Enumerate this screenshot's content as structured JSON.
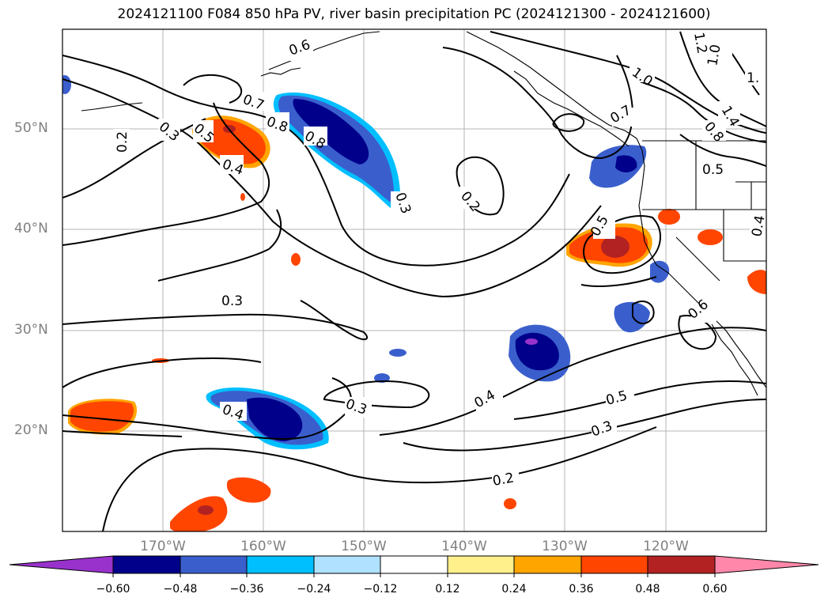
{
  "title": "2024121100 F084 850 hPa PV, river basin precipitation PC (2024121300 - 2024121600)",
  "lat_labels": [
    "50°N",
    "40°N",
    "30°N",
    "20°N"
  ],
  "lon_labels": [
    "170°W",
    "160°W",
    "150°W",
    "140°W",
    "130°W",
    "120°W"
  ],
  "contour_labels": [
    "0.2",
    "0.3",
    "0.5",
    "0.4",
    "0.7",
    "0.8",
    "0.6",
    "0.8",
    "0.3",
    "0.2",
    "0.3",
    "0.3",
    "0.4",
    "0.4",
    "0.5",
    "0.3",
    "0.2",
    "1.0",
    "1.2",
    "1.0",
    "1.4",
    "0.7",
    "0.8",
    "0.5",
    "0.5",
    "0.6",
    "0.4",
    "1."
  ],
  "colorbar": {
    "ticks": [
      "−0.60",
      "−0.48",
      "−0.36",
      "−0.24",
      "−0.12",
      "0.12",
      "0.24",
      "0.36",
      "0.48",
      "0.60"
    ],
    "colors": [
      "#9932cc",
      "#00008b",
      "#3a5fcd",
      "#00bfff",
      "#b0e2ff",
      "#ffffff",
      "#fff08c",
      "#ffa500",
      "#ff4500",
      "#b22222",
      "#ff88aa"
    ]
  },
  "map": {
    "projection": "plate carrée",
    "lon_range": [
      "180°W",
      "110°W"
    ],
    "lat_range": [
      "10°N",
      "60°N"
    ],
    "gridlines": true,
    "coastlines": true,
    "filled_field": "river basin precipitation PC",
    "contour_field": "850 hPa PV"
  }
}
